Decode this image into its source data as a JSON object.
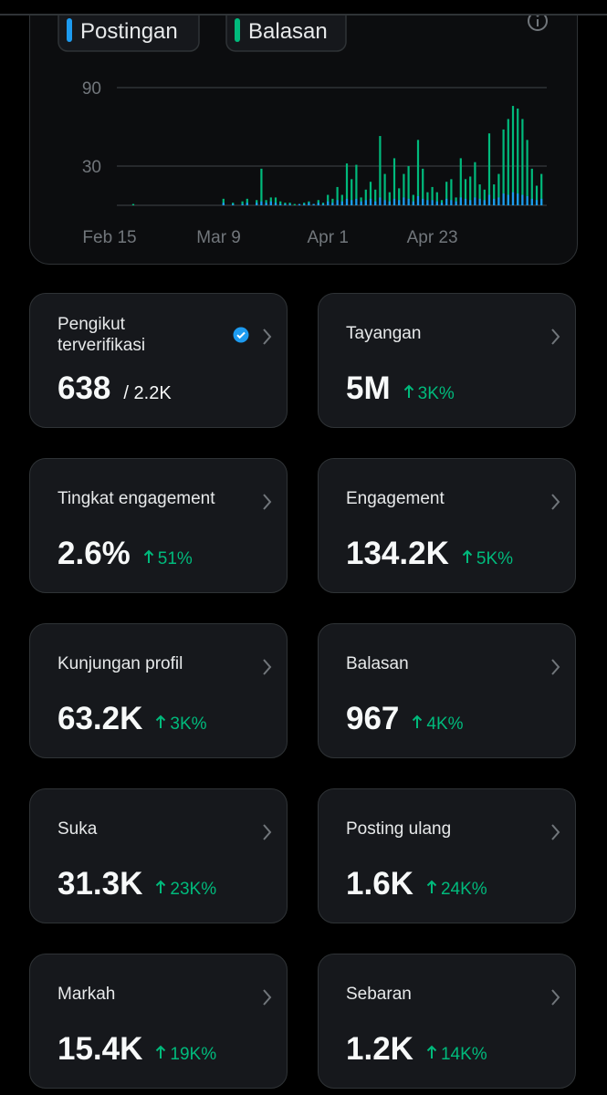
{
  "chart_data": {
    "type": "bar",
    "categories": [
      null,
      null,
      "Feb 15",
      null,
      null,
      null,
      null,
      null,
      null,
      null,
      null,
      null,
      null,
      null,
      null,
      null,
      null,
      null,
      null,
      null,
      null,
      null,
      null,
      null,
      null,
      "Mar 9",
      null,
      null,
      null,
      null,
      null,
      null,
      null,
      null,
      null,
      null,
      null,
      null,
      null,
      null,
      null,
      null,
      null,
      null,
      null,
      null,
      null,
      null,
      "Apr 1",
      null,
      null,
      null,
      null,
      null,
      null,
      null,
      null,
      null,
      null,
      null,
      null,
      null,
      null,
      null,
      null,
      null,
      null,
      null,
      null,
      null,
      "Apr 23",
      null,
      null,
      null,
      null,
      null,
      null,
      null,
      null,
      null,
      null,
      null,
      null,
      null,
      null,
      null,
      null,
      null,
      null,
      null,
      null,
      null,
      null,
      null
    ],
    "series": [
      {
        "name": "Postingan",
        "color": "#1d9bf0",
        "values": [
          0,
          0,
          0,
          0,
          0,
          0,
          0,
          0,
          0,
          0,
          0,
          0,
          0,
          0,
          0,
          0,
          0,
          0,
          0,
          0,
          0,
          0,
          0,
          0,
          0,
          0,
          2,
          0,
          1,
          0,
          1,
          2,
          0,
          2,
          3,
          2,
          3,
          2,
          1,
          1,
          1,
          0,
          1,
          1,
          2,
          1,
          2,
          1,
          3,
          2,
          4,
          3,
          5,
          4,
          5,
          3,
          4,
          5,
          3,
          6,
          4,
          3,
          5,
          4,
          6,
          5,
          3,
          7,
          5,
          4,
          4,
          3,
          2,
          5,
          4,
          3,
          6,
          5,
          4,
          6,
          5,
          4,
          8,
          5,
          6,
          9,
          8,
          10,
          9,
          8,
          7,
          5,
          4,
          5
        ]
      },
      {
        "name": "Balasan",
        "color": "#00ba7c",
        "values": [
          0,
          0,
          0,
          0,
          0,
          0,
          0,
          1,
          0,
          0,
          0,
          0,
          0,
          0,
          0,
          0,
          0,
          0,
          0,
          0,
          0,
          0,
          0,
          0,
          0,
          0,
          5,
          0,
          2,
          0,
          3,
          5,
          0,
          4,
          28,
          4,
          6,
          6,
          3,
          2,
          2,
          1,
          0,
          2,
          3,
          1,
          4,
          2,
          8,
          5,
          14,
          8,
          32,
          20,
          31,
          6,
          12,
          18,
          12,
          53,
          24,
          10,
          36,
          13,
          24,
          30,
          8,
          50,
          28,
          10,
          14,
          10,
          4,
          18,
          20,
          6,
          36,
          20,
          22,
          33,
          16,
          12,
          55,
          16,
          24,
          58,
          66,
          76,
          74,
          66,
          50,
          28,
          15,
          24
        ]
      }
    ],
    "ylim": [
      0,
      100
    ],
    "yticks": [
      30,
      90
    ],
    "grid": true
  },
  "cards": [
    {
      "title": "Pengikut terverifikasi",
      "value": "638",
      "total": "/ 2.2K",
      "verified": true
    },
    {
      "title": "Tayangan",
      "value": "5M",
      "change": "3K%"
    },
    {
      "title": "Tingkat engagement",
      "value": "2.6%",
      "change": "51%"
    },
    {
      "title": "Engagement",
      "value": "134.2K",
      "change": "5K%"
    },
    {
      "title": "Kunjungan profil",
      "value": "63.2K",
      "change": "3K%"
    },
    {
      "title": "Balasan",
      "value": "967",
      "change": "4K%"
    },
    {
      "title": "Suka",
      "value": "31.3K",
      "change": "23K%"
    },
    {
      "title": "Posting ulang",
      "value": "1.6K",
      "change": "24K%"
    },
    {
      "title": "Markah",
      "value": "15.4K",
      "change": "19K%"
    },
    {
      "title": "Sebaran",
      "value": "1.2K",
      "change": "14K%"
    }
  ]
}
